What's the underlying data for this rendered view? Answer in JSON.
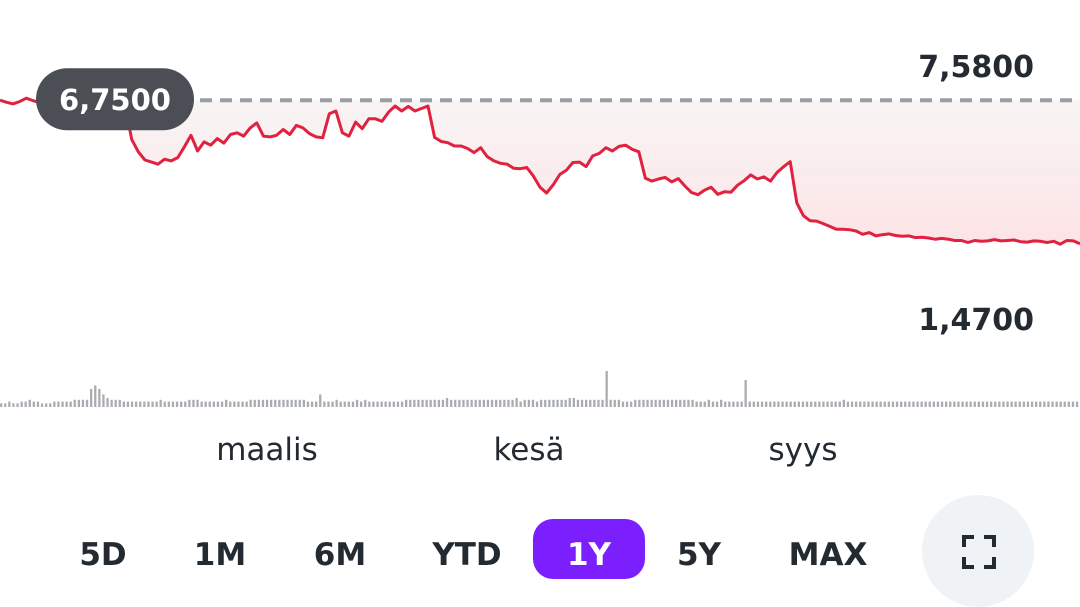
{
  "chart_data": {
    "type": "line",
    "title": "",
    "xlabel": "",
    "ylabel": "",
    "x_tick_labels": [
      "maalis",
      "kesä",
      "syys"
    ],
    "y_reference_labels": {
      "high": "7,5800",
      "low": "1,4700"
    },
    "previous_close": {
      "label": "6,7500",
      "value": 6.75
    },
    "ylim": [
      1.2,
      7.9
    ],
    "series": [
      {
        "values": [
          6.75,
          6.7,
          6.66,
          6.72,
          6.8,
          6.74,
          6.69,
          7.05,
          7.28,
          7.02,
          6.74,
          6.78,
          6.82,
          6.76,
          6.78,
          6.7,
          6.66,
          6.72,
          6.68,
          6.62,
          5.8,
          5.5,
          5.3,
          5.25,
          5.2,
          5.32,
          5.28,
          5.36,
          5.62,
          5.9,
          5.52,
          5.74,
          5.66,
          5.82,
          5.71,
          5.92,
          5.96,
          5.88,
          6.08,
          6.2,
          5.88,
          5.86,
          5.9,
          6.04,
          5.92,
          6.14,
          6.08,
          5.94,
          5.86,
          5.84,
          6.42,
          6.49,
          5.96,
          5.88,
          6.22,
          6.06,
          6.3,
          6.3,
          6.24,
          6.46,
          6.61,
          6.49,
          6.6,
          6.49,
          6.55,
          6.61,
          5.85,
          5.75,
          5.72,
          5.64,
          5.64,
          5.58,
          5.48,
          5.6,
          5.38,
          5.28,
          5.22,
          5.2,
          5.1,
          5.09,
          5.12,
          4.91,
          4.64,
          4.5,
          4.7,
          4.95,
          5.05,
          5.24,
          5.25,
          5.14,
          5.4,
          5.46,
          5.6,
          5.52,
          5.63,
          5.66,
          5.56,
          5.5,
          4.86,
          4.79,
          4.84,
          4.88,
          4.77,
          4.85,
          4.67,
          4.51,
          4.46,
          4.57,
          4.64,
          4.47,
          4.53,
          4.52,
          4.69,
          4.8,
          4.94,
          4.84,
          4.89,
          4.79,
          5.0,
          5.14,
          5.26,
          4.26,
          3.95,
          3.83,
          3.82,
          3.76,
          3.69,
          3.62,
          3.62,
          3.61,
          3.58,
          3.5,
          3.54,
          3.46,
          3.49,
          3.51,
          3.47,
          3.45,
          3.46,
          3.42,
          3.43,
          3.41,
          3.38,
          3.4,
          3.38,
          3.35,
          3.35,
          3.3,
          3.35,
          3.33,
          3.34,
          3.37,
          3.34,
          3.35,
          3.36,
          3.32,
          3.31,
          3.34,
          3.33,
          3.3,
          3.33,
          3.26,
          3.35,
          3.34,
          3.27
        ]
      }
    ],
    "volume": {
      "values": [
        2,
        2,
        3,
        2,
        2,
        3,
        3,
        4,
        3,
        3,
        2,
        2,
        2,
        3,
        3,
        3,
        3,
        3,
        4,
        4,
        4,
        4,
        10,
        12,
        10,
        7,
        5,
        4,
        4,
        4,
        3,
        3,
        3,
        3,
        3,
        3,
        3,
        3,
        3,
        4,
        3,
        3,
        3,
        3,
        3,
        3,
        4,
        4,
        4,
        3,
        3,
        3,
        3,
        3,
        3,
        4,
        3,
        3,
        3,
        3,
        3,
        4,
        4,
        4,
        4,
        4,
        4,
        4,
        4,
        4,
        4,
        4,
        4,
        4,
        4,
        3,
        3,
        3,
        6,
        3,
        3,
        3,
        4,
        3,
        3,
        3,
        3,
        4,
        3,
        4,
        3,
        3,
        3,
        3,
        3,
        3,
        3,
        3,
        3,
        4,
        4,
        4,
        4,
        4,
        4,
        4,
        4,
        4,
        4,
        5,
        4,
        4,
        4,
        4,
        4,
        4,
        4,
        4,
        4,
        4,
        4,
        4,
        4,
        4,
        4,
        4,
        5,
        3,
        4,
        4,
        4,
        3,
        4,
        4,
        4,
        4,
        4,
        4,
        4,
        5,
        5,
        4,
        4,
        4,
        4,
        4,
        4,
        4,
        4,
        4,
        4,
        4,
        3,
        3,
        3,
        4,
        4,
        4,
        4,
        4,
        4,
        4,
        4,
        4,
        4,
        4,
        4,
        4,
        4,
        4,
        3,
        3,
        3,
        4,
        3,
        3,
        4,
        3,
        3,
        3,
        3,
        3,
        3,
        3,
        3,
        3,
        3,
        3,
        3,
        3,
        3,
        3,
        3,
        3,
        3,
        3,
        3,
        3,
        3,
        3,
        3,
        3,
        3,
        3,
        3,
        3,
        4,
        3,
        3,
        3,
        3,
        3,
        3,
        3,
        3,
        3,
        3,
        3,
        3,
        3,
        3,
        3,
        3,
        3,
        3,
        3,
        3,
        3,
        3,
        3,
        3,
        3,
        3,
        3,
        3,
        3,
        3,
        3,
        3,
        3,
        3,
        3,
        3,
        3,
        3,
        3,
        3,
        3,
        3,
        3,
        3,
        3,
        3,
        3,
        3,
        3,
        3,
        3,
        3,
        3,
        3,
        3,
        3,
        3
      ],
      "spikes": [
        {
          "index": 78,
          "value": 7
        },
        {
          "index": 148,
          "value": 20
        },
        {
          "index": 182,
          "value": 15
        }
      ]
    },
    "colors": {
      "line": "#e0213f",
      "fill_top": "#f7f7f7",
      "fill_bottom": "#fde4e6",
      "prev_close_line": "#9a9ca3",
      "green_segment": "#1aa35a",
      "volume": "#a9adb2"
    }
  },
  "range_buttons": [
    {
      "label": "5D",
      "active": false
    },
    {
      "label": "1M",
      "active": false
    },
    {
      "label": "6M",
      "active": false
    },
    {
      "label": "YTD",
      "active": false
    },
    {
      "label": "1Y",
      "active": true
    },
    {
      "label": "5Y",
      "active": false
    },
    {
      "label": "MAX",
      "active": false
    }
  ],
  "fullscreen": {
    "icon": "fullscreen-icon"
  }
}
